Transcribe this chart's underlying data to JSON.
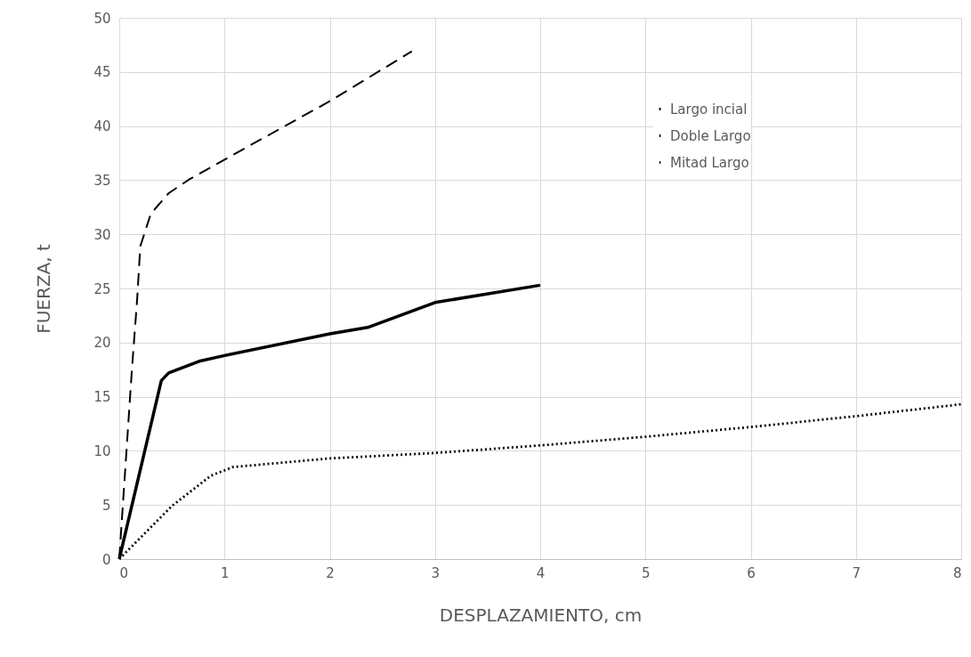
{
  "chart_data": {
    "type": "line",
    "xlabel": "DESPLAZAMIENTO, cm",
    "ylabel": "FUERZA, t",
    "xlim": [
      0,
      8
    ],
    "xticks": [
      0,
      1,
      2,
      3,
      4,
      5,
      6,
      7,
      8
    ],
    "ylim": [
      0,
      50
    ],
    "yticks": [
      0,
      5,
      10,
      15,
      20,
      25,
      30,
      35,
      40,
      45,
      50
    ],
    "grid": true,
    "legend": "top right",
    "marker": "none",
    "series": [
      {
        "name": "Largo incial",
        "color": "#000000",
        "line_style": "solid",
        "x": [
          0,
          0.4,
          0.47,
          0.77,
          1.0,
          2.0,
          2.36,
          3.0,
          4.0
        ],
        "values": [
          0,
          16.5,
          17.2,
          18.3,
          18.8,
          20.8,
          21.4,
          23.7,
          25.3
        ]
      },
      {
        "name": "Doble Largo",
        "color": "#000000",
        "line_style": "dotted",
        "x": [
          0,
          0.5,
          0.87,
          1.08,
          2.0,
          3.0,
          4.0,
          5.0,
          6.0,
          7.0,
          8.0
        ],
        "values": [
          0,
          4.9,
          7.7,
          8.5,
          9.3,
          9.8,
          10.5,
          11.3,
          12.2,
          13.2,
          14.3
        ]
      },
      {
        "name": "Mitad Largo",
        "color": "#000000",
        "line_style": "dashed",
        "x": [
          0,
          0.12,
          0.17,
          0.2,
          0.3,
          0.47,
          0.67,
          1.0,
          2.0,
          2.78
        ],
        "values": [
          0,
          17.5,
          24,
          28.9,
          31.9,
          33.8,
          35.1,
          36.9,
          42.3,
          46.9
        ]
      }
    ]
  }
}
